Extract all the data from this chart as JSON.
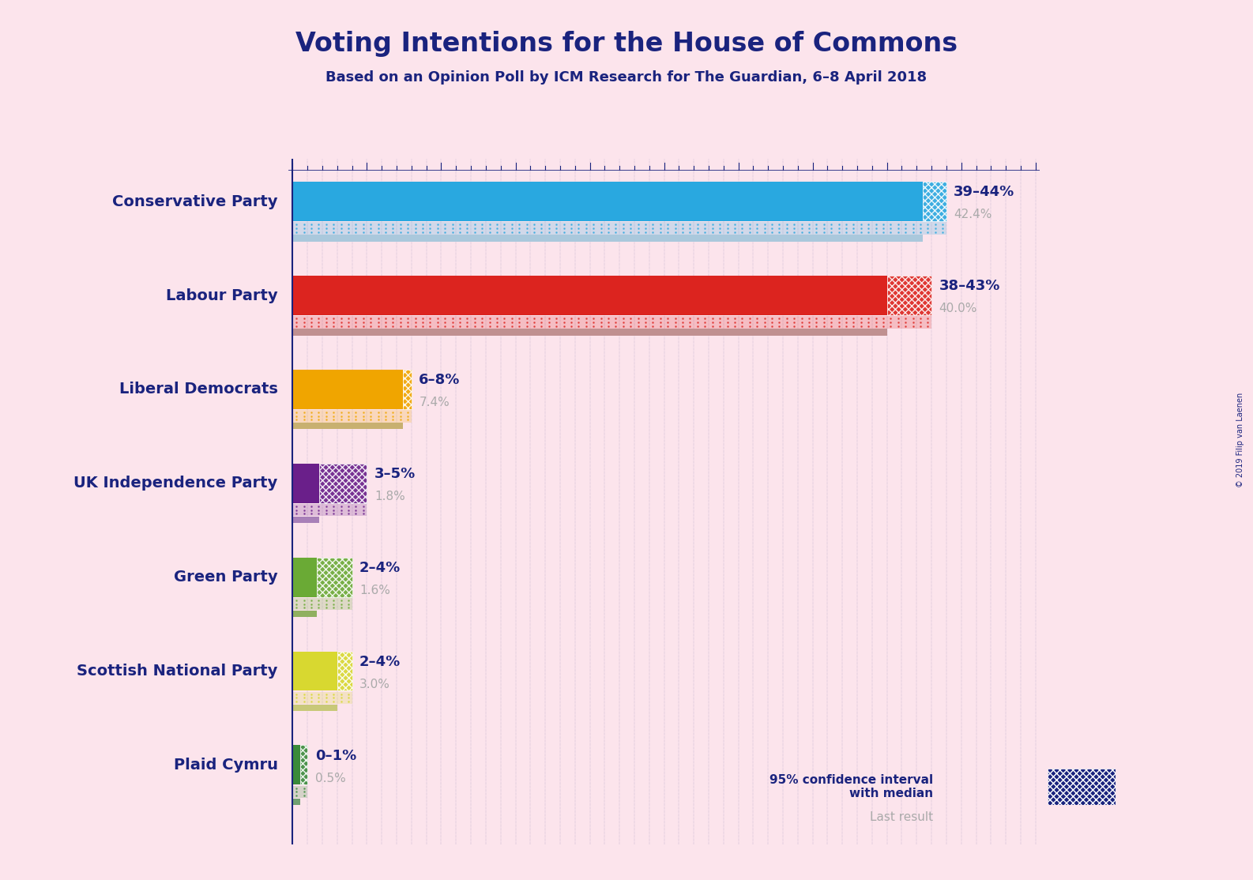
{
  "title": "Voting Intentions for the House of Commons",
  "subtitle": "Based on an Opinion Poll by ICM Research for The Guardian, 6–8 April 2018",
  "copyright": "© 2019 Filip van Laenen",
  "background_color": "#fce4ec",
  "title_color": "#1a237e",
  "parties": [
    {
      "name": "Conservative Party",
      "median": 42.4,
      "ci_low": 39,
      "ci_high": 44,
      "last_result": 42.4,
      "bar_color": "#29a8e0",
      "ci_dot_color": "#29a8e0",
      "last_color": "#aac8dc",
      "label_range": "39–44%",
      "label_median": "42.4%"
    },
    {
      "name": "Labour Party",
      "median": 40.0,
      "ci_low": 38,
      "ci_high": 43,
      "last_result": 40.0,
      "bar_color": "#dc241f",
      "ci_dot_color": "#dc241f",
      "last_color": "#c09090",
      "label_range": "38–43%",
      "label_median": "40.0%"
    },
    {
      "name": "Liberal Democrats",
      "median": 7.4,
      "ci_low": 6,
      "ci_high": 8,
      "last_result": 7.4,
      "bar_color": "#f0a500",
      "ci_dot_color": "#f0a500",
      "last_color": "#c8b070",
      "label_range": "6–8%",
      "label_median": "7.4%"
    },
    {
      "name": "UK Independence Party",
      "median": 1.8,
      "ci_low": 3,
      "ci_high": 5,
      "last_result": 1.8,
      "bar_color": "#6a1f8a",
      "ci_dot_color": "#6a1f8a",
      "last_color": "#a880b8",
      "label_range": "3–5%",
      "label_median": "1.8%"
    },
    {
      "name": "Green Party",
      "median": 1.6,
      "ci_low": 2,
      "ci_high": 4,
      "last_result": 1.6,
      "bar_color": "#6aaa35",
      "ci_dot_color": "#6aaa35",
      "last_color": "#90b060",
      "label_range": "2–4%",
      "label_median": "1.6%"
    },
    {
      "name": "Scottish National Party",
      "median": 3.0,
      "ci_low": 2,
      "ci_high": 4,
      "last_result": 3.0,
      "bar_color": "#d8d830",
      "ci_dot_color": "#d8d830",
      "last_color": "#c8c878",
      "label_range": "2–4%",
      "label_median": "3.0%"
    },
    {
      "name": "Plaid Cymru",
      "median": 0.5,
      "ci_low": 0,
      "ci_high": 1,
      "last_result": 0.5,
      "bar_color": "#3a8a3a",
      "ci_dot_color": "#3a8a3a",
      "last_color": "#70a070",
      "label_range": "0–1%",
      "label_median": "0.5%"
    }
  ],
  "x_max": 50,
  "label_color_range": "#1a237e",
  "label_color_median": "#aaaaaa",
  "legend_label": "95% confidence interval\nwith median",
  "legend_last": "Last result",
  "legend_color_main": "#1a237e",
  "legend_color_last": "#aaaaaa",
  "dot_grid_color": "#1a237e",
  "ruler_color": "#1a237e"
}
